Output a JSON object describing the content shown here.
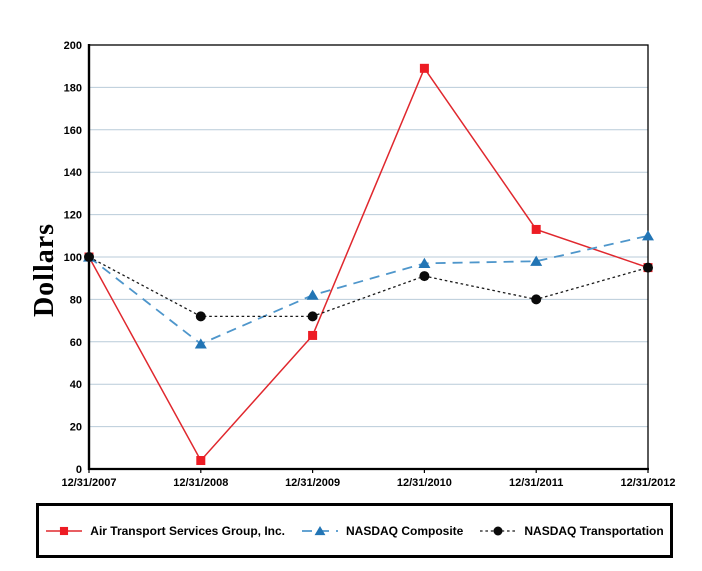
{
  "chart_data": {
    "type": "line",
    "title": "",
    "xlabel": "",
    "ylabel": "Dollars",
    "ylim": [
      0,
      200
    ],
    "y_ticks": [
      0,
      20,
      40,
      60,
      80,
      100,
      120,
      140,
      160,
      180,
      200
    ],
    "categories": [
      "12/31/2007",
      "12/31/2008",
      "12/31/2009",
      "12/31/2010",
      "12/31/2011",
      "12/31/2012"
    ],
    "series": [
      {
        "name": "Air Transport Services Group, Inc.",
        "values": [
          100,
          4,
          63,
          189,
          113,
          95
        ],
        "color": "#E0282E",
        "marker_color": "#ED1C24",
        "marker": "square",
        "line_style": "solid"
      },
      {
        "name": "NASDAQ Composite",
        "values": [
          100,
          59,
          82,
          97,
          98,
          110
        ],
        "color": "#4E96CB",
        "marker_color": "#2275B5",
        "marker": "triangle",
        "line_style": "dashed"
      },
      {
        "name": "NASDAQ Transportation",
        "values": [
          100,
          72,
          72,
          91,
          80,
          95
        ],
        "color": "#1A1A1A",
        "marker_color": "#0A0A0A",
        "marker": "circle",
        "line_style": "dotted"
      }
    ],
    "grid_color": "#B9CBD9",
    "axis_color": "#000000",
    "grid": true,
    "legend_position": "bottom"
  }
}
